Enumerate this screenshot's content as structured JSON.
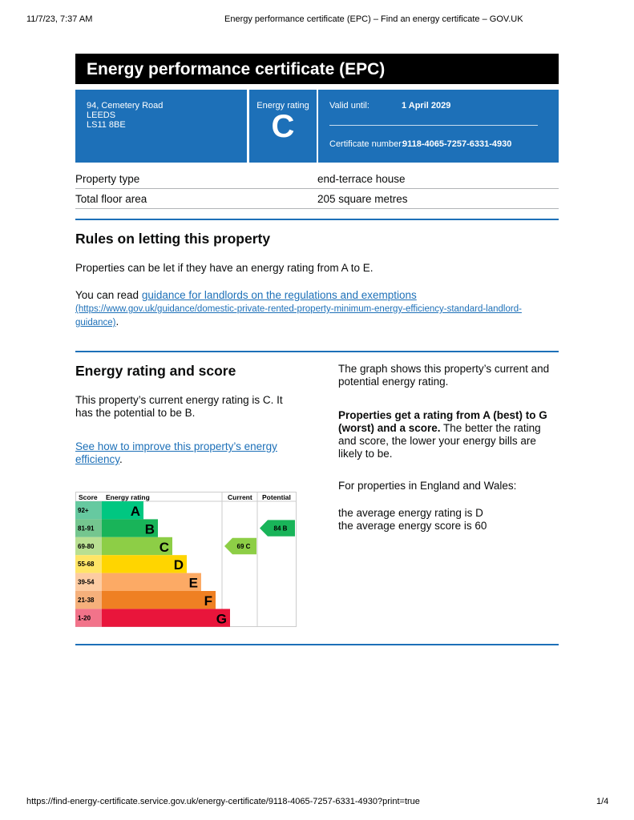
{
  "print_header": {
    "datetime": "11/7/23, 7:37 AM",
    "page_title": "Energy performance certificate (EPC) – Find an energy certificate – GOV.UK"
  },
  "print_footer": {
    "url": "https://find-energy-certificate.service.gov.uk/energy-certificate/9118-4065-7257-6331-4930?print=true",
    "page": "1/4"
  },
  "title": "Energy performance certificate (EPC)",
  "address": [
    "94, Cemetery Road",
    "LEEDS",
    "LS11 8BE"
  ],
  "rating_box": {
    "label": "Energy rating",
    "value": "C"
  },
  "validity": {
    "label": "Valid until:",
    "value": "1 April 2029"
  },
  "certificate": {
    "label": "Certificate number:",
    "value": "9118-4065-7257-6331-4930"
  },
  "summary": [
    {
      "label": "Property type",
      "value": "end-terrace house"
    },
    {
      "label": "Total floor area",
      "value": "205 square metres"
    }
  ],
  "letting": {
    "heading": "Rules on letting this property",
    "text": "Properties can be let if they have an energy rating from A to E.",
    "read_prefix": "You can read ",
    "link_text": "guidance for landlords on the regulations and exemptions",
    "link_url_text": "(https://www.gov.uk/guidance/domestic-private-rented-property-minimum-energy-efficiency-standard-landlord-guidance)",
    "suffix": "."
  },
  "score": {
    "heading": "Energy rating and score",
    "current_text": "This property’s current energy rating is C. It has the potential to be B.",
    "improve_link": "See how to improve this property’s energy efficiency",
    "suffix": ".",
    "graph_text": "The graph shows this property’s current and potential energy rating.",
    "bold_text": "Properties get a rating from A (best) to G (worst) and a score.",
    "rest_text": " The better the rating and score, the lower your energy bills are likely to be.",
    "ew_text": "For properties in England and Wales:",
    "avg_rating": "the average energy rating is D",
    "avg_score": "the average energy score is 60"
  },
  "chart_data": {
    "type": "bar",
    "headers": [
      "Score",
      "Energy rating",
      "Current",
      "Potential"
    ],
    "bands": [
      {
        "score": "92+",
        "letter": "A",
        "color": "#00c781",
        "light": "#66c9a0"
      },
      {
        "score": "81-91",
        "letter": "B",
        "color": "#19b459",
        "light": "#74c68f"
      },
      {
        "score": "69-80",
        "letter": "C",
        "color": "#8dce46",
        "light": "#b9df92"
      },
      {
        "score": "55-68",
        "letter": "D",
        "color": "#ffd500",
        "light": "#ffe566"
      },
      {
        "score": "39-54",
        "letter": "E",
        "color": "#fcaa65",
        "light": "#fdcca3"
      },
      {
        "score": "21-38",
        "letter": "F",
        "color": "#ef8023",
        "light": "#f5b07b"
      },
      {
        "score": "1-20",
        "letter": "G",
        "color": "#e9153b",
        "light": "#f2738a"
      }
    ],
    "current": {
      "score": 69,
      "letter": "C",
      "label": "69  C"
    },
    "potential": {
      "score": 84,
      "letter": "B",
      "label": "84  B"
    }
  }
}
